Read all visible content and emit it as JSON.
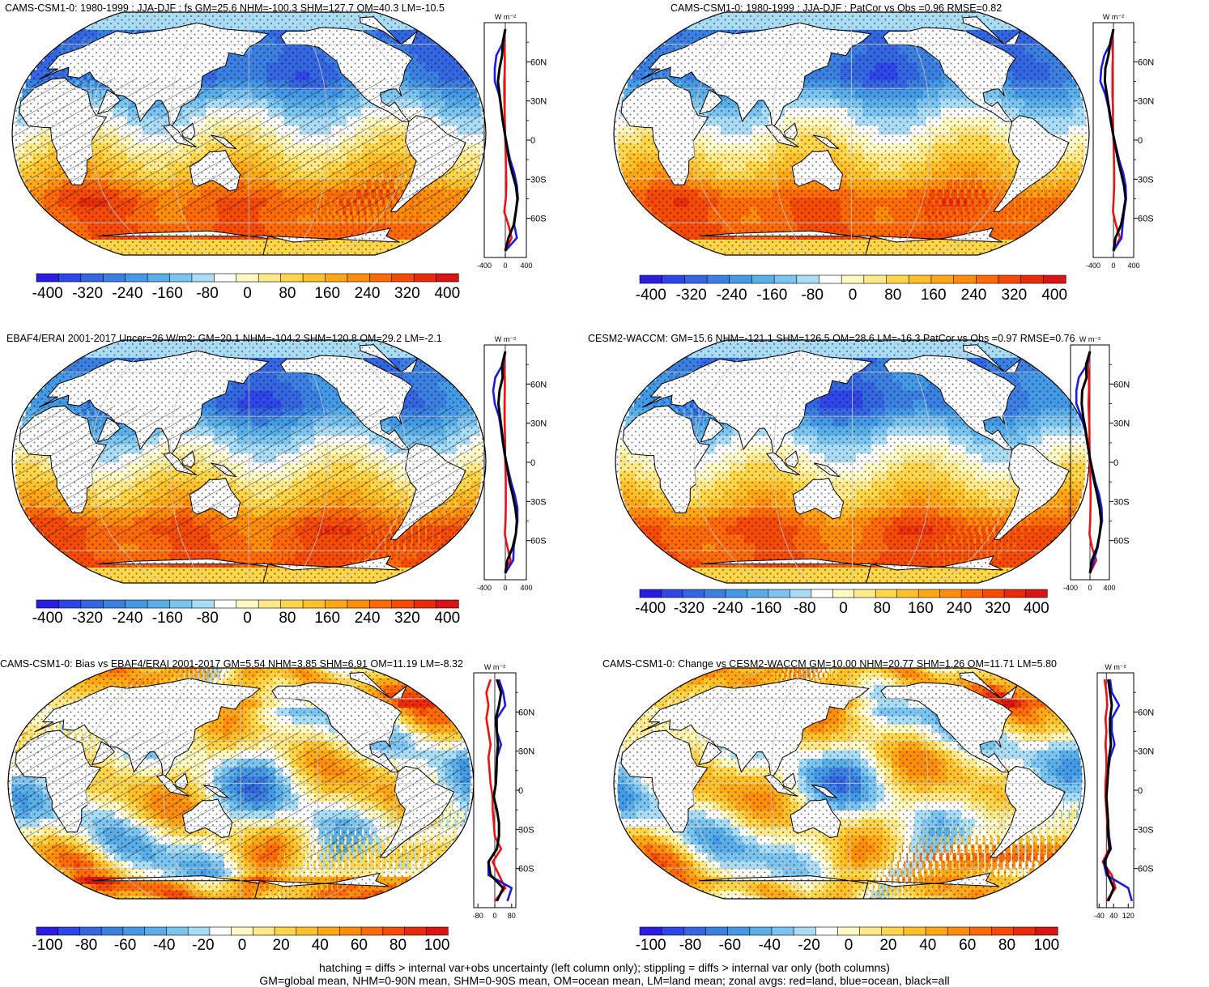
{
  "colors": {
    "land_color": "#ffffff",
    "zonal_land": "#ee1111",
    "zonal_ocean": "#1a1ae6",
    "zonal_all": "#000000",
    "colorbar": [
      "#2b1de0",
      "#2e46e8",
      "#3366e0",
      "#3b7fe0",
      "#4499e6",
      "#5aaee8",
      "#7cc4f0",
      "#a9dcf5",
      "#ffffff",
      "#fff9c4",
      "#ffe98a",
      "#ffd54a",
      "#ffc02a",
      "#ffa715",
      "#ff8c0a",
      "#ff6a06",
      "#f44a06",
      "#e82b0a",
      "#d91414"
    ]
  },
  "zonal_unit": "W m⁻²",
  "latitude_ticks": [
    "60N",
    "30N",
    "0",
    "30S",
    "60S"
  ],
  "chart_data": [
    {
      "type": "heatmap",
      "title": "CAMS-CSM1-0: 1980-1999 : JJA-DJF : fs GM=25.6 NHM=-100.3 SHM=127.7 OM=40.3 LM=-10.5",
      "colorbar_ticks": [
        "-400",
        "-320",
        "-240",
        "-160",
        "-80",
        "0",
        "80",
        "160",
        "240",
        "320",
        "400"
      ],
      "zonal_xticks": [
        "-400",
        "0",
        "400"
      ],
      "zonal_xlim": [
        -400,
        400
      ],
      "hatching": true,
      "zonal_profiles": {
        "lat": [
          85,
          75,
          65,
          55,
          45,
          35,
          25,
          15,
          5,
          -5,
          -15,
          -25,
          -35,
          -45,
          -55,
          -65,
          -75,
          -85
        ],
        "all": [
          0,
          -50,
          -60,
          -110,
          -140,
          -110,
          -80,
          -50,
          -10,
          30,
          70,
          130,
          200,
          230,
          200,
          160,
          60,
          0
        ],
        "ocean": [
          0,
          -40,
          -170,
          -200,
          -200,
          -120,
          -80,
          -50,
          -10,
          40,
          90,
          170,
          220,
          240,
          200,
          170,
          220,
          0
        ],
        "land": [
          0,
          -30,
          -10,
          -10,
          -20,
          -20,
          -15,
          -10,
          -5,
          5,
          10,
          15,
          20,
          10,
          -20,
          60,
          120,
          0
        ]
      }
    },
    {
      "type": "heatmap",
      "title": "CAMS-CSM1-0: 1980-1999 : JJA-DJF : PatCor vs Obs =0.96 RMSE=0.82",
      "colorbar_ticks": [
        "-400",
        "-320",
        "-240",
        "-160",
        "-80",
        "0",
        "80",
        "160",
        "240",
        "320",
        "400"
      ],
      "zonal_xticks": [
        "-400",
        "0",
        "400"
      ],
      "zonal_xlim": [
        -400,
        400
      ],
      "hatching": false,
      "zonal_profiles": {
        "lat": [
          85,
          75,
          65,
          55,
          45,
          35,
          25,
          15,
          5,
          -5,
          -15,
          -25,
          -35,
          -45,
          -55,
          -65,
          -75,
          -85
        ],
        "all": [
          0,
          -60,
          -100,
          -160,
          -170,
          -130,
          -90,
          -50,
          -10,
          40,
          90,
          150,
          210,
          240,
          200,
          150,
          40,
          0
        ],
        "ocean": [
          0,
          -50,
          -180,
          -240,
          -260,
          -160,
          -100,
          -60,
          -10,
          50,
          110,
          190,
          240,
          250,
          210,
          180,
          160,
          0
        ],
        "land": [
          0,
          -30,
          -10,
          -20,
          -20,
          -20,
          -10,
          -10,
          -5,
          5,
          10,
          15,
          15,
          5,
          -10,
          50,
          130,
          0
        ]
      }
    },
    {
      "type": "heatmap",
      "title": "EBAF4/ERAI 2001-2017 Uncer=26 W/m2: GM=20.1 NHM=-104.2 SHM=120.8 OM=29.2 LM=-2.1",
      "colorbar_ticks": [
        "-400",
        "-320",
        "-240",
        "-160",
        "-80",
        "0",
        "80",
        "160",
        "240",
        "320",
        "400"
      ],
      "zonal_xticks": [
        "-400",
        "0",
        "400"
      ],
      "zonal_xlim": [
        -400,
        400
      ],
      "hatching": true,
      "zonal_profiles": {
        "lat": [
          85,
          75,
          65,
          55,
          45,
          35,
          25,
          15,
          5,
          -5,
          -15,
          -25,
          -35,
          -45,
          -55,
          -65,
          -75,
          -85
        ],
        "all": [
          0,
          -60,
          -50,
          -110,
          -130,
          -100,
          -70,
          -40,
          -5,
          40,
          80,
          140,
          190,
          220,
          200,
          140,
          40,
          0
        ],
        "ocean": [
          0,
          -50,
          -190,
          -230,
          -200,
          -120,
          -80,
          -50,
          -10,
          50,
          110,
          180,
          230,
          230,
          200,
          160,
          150,
          0
        ],
        "land": [
          0,
          -30,
          -10,
          -10,
          -15,
          -15,
          -10,
          -5,
          -5,
          5,
          10,
          10,
          10,
          5,
          -10,
          40,
          100,
          0
        ]
      }
    },
    {
      "type": "heatmap",
      "title": "CESM2-WACCM: GM=15.6 NHM=-121.1 SHM=126.5 OM=28.6 LM=-16.3 PatCor vs Obs =0.97 RMSE=0.76",
      "colorbar_ticks": [
        "-400",
        "-320",
        "-240",
        "-160",
        "-80",
        "0",
        "80",
        "160",
        "240",
        "320",
        "400"
      ],
      "zonal_xticks": [
        "-400",
        "0",
        "400"
      ],
      "zonal_xlim": [
        -400,
        400
      ],
      "hatching": false,
      "zonal_profiles": {
        "lat": [
          85,
          75,
          65,
          55,
          45,
          35,
          25,
          15,
          5,
          -5,
          -15,
          -25,
          -35,
          -45,
          -55,
          -65,
          -75,
          -85
        ],
        "all": [
          0,
          -80,
          -70,
          -160,
          -170,
          -140,
          -90,
          -50,
          -10,
          40,
          90,
          150,
          200,
          230,
          200,
          150,
          40,
          0
        ],
        "ocean": [
          0,
          -60,
          -230,
          -280,
          -280,
          -180,
          -100,
          -60,
          -10,
          50,
          110,
          190,
          240,
          250,
          200,
          160,
          80,
          0
        ],
        "land": [
          0,
          -40,
          -20,
          -20,
          -30,
          -20,
          -10,
          -10,
          -5,
          5,
          10,
          15,
          10,
          5,
          -10,
          40,
          130,
          0
        ]
      }
    },
    {
      "type": "heatmap",
      "title": "CAMS-CSM1-0: Bias vs EBAF4/ERAI 2001-2017 GM=5.54 NHM=3.85 SHM=6.91 OM=11.19 LM=-8.32",
      "colorbar_ticks": [
        "-100",
        "-80",
        "-60",
        "-40",
        "-20",
        "0",
        "20",
        "40",
        "60",
        "80",
        "100"
      ],
      "zonal_xticks": [
        "-80",
        "0",
        "80"
      ],
      "zonal_xlim": [
        -100,
        100
      ],
      "hatching": true,
      "zonal_profiles": {
        "lat": [
          85,
          75,
          65,
          55,
          45,
          35,
          25,
          15,
          5,
          -5,
          -15,
          -25,
          -35,
          -45,
          -55,
          -65,
          -75,
          -85
        ],
        "all": [
          10,
          30,
          20,
          5,
          10,
          15,
          10,
          8,
          5,
          -5,
          10,
          20,
          20,
          10,
          -30,
          -20,
          40,
          10
        ],
        "ocean": [
          20,
          40,
          50,
          10,
          10,
          30,
          10,
          8,
          5,
          -5,
          10,
          20,
          20,
          10,
          -30,
          -30,
          80,
          60
        ],
        "land": [
          -20,
          -40,
          -30,
          -40,
          -30,
          -20,
          -30,
          -25,
          -20,
          -10,
          -10,
          -5,
          0,
          30,
          -10,
          20,
          50,
          0
        ]
      }
    },
    {
      "type": "heatmap",
      "title": "CAMS-CSM1-0: Change vs CESM2-WACCM GM=10.00 NHM=20.77 SHM=1.26 OM=11.71 LM=5.80",
      "colorbar_ticks": [
        "-100",
        "-80",
        "-60",
        "-40",
        "-20",
        "0",
        "20",
        "40",
        "60",
        "80",
        "100"
      ],
      "zonal_xticks": [
        "-40",
        "40",
        "120"
      ],
      "zonal_xlim": [
        -50,
        150
      ],
      "hatching": false,
      "zonal_profiles": {
        "lat": [
          85,
          75,
          65,
          55,
          45,
          35,
          25,
          15,
          5,
          -5,
          -15,
          -25,
          -35,
          -45,
          -55,
          -65,
          -75,
          -85
        ],
        "all": [
          10,
          20,
          30,
          20,
          20,
          25,
          15,
          10,
          5,
          0,
          5,
          10,
          10,
          20,
          -10,
          10,
          40,
          10
        ],
        "ocean": [
          20,
          30,
          70,
          30,
          30,
          45,
          20,
          10,
          5,
          0,
          5,
          10,
          15,
          25,
          -15,
          0,
          120,
          140
        ],
        "land": [
          -10,
          0,
          5,
          -5,
          0,
          -5,
          0,
          0,
          -5,
          -5,
          0,
          5,
          10,
          15,
          -20,
          30,
          50,
          0
        ]
      }
    }
  ],
  "footer": {
    "line1": "hatching = diffs > internal var+obs uncertainty (left column only); stippling = diffs > internal var only (both columns)",
    "line2": "GM=global mean, NHM=0-90N mean, SHM=0-90S mean, OM=ocean mean, LM=land mean; zonal avgs: red=land, blue=ocean, black=all"
  }
}
